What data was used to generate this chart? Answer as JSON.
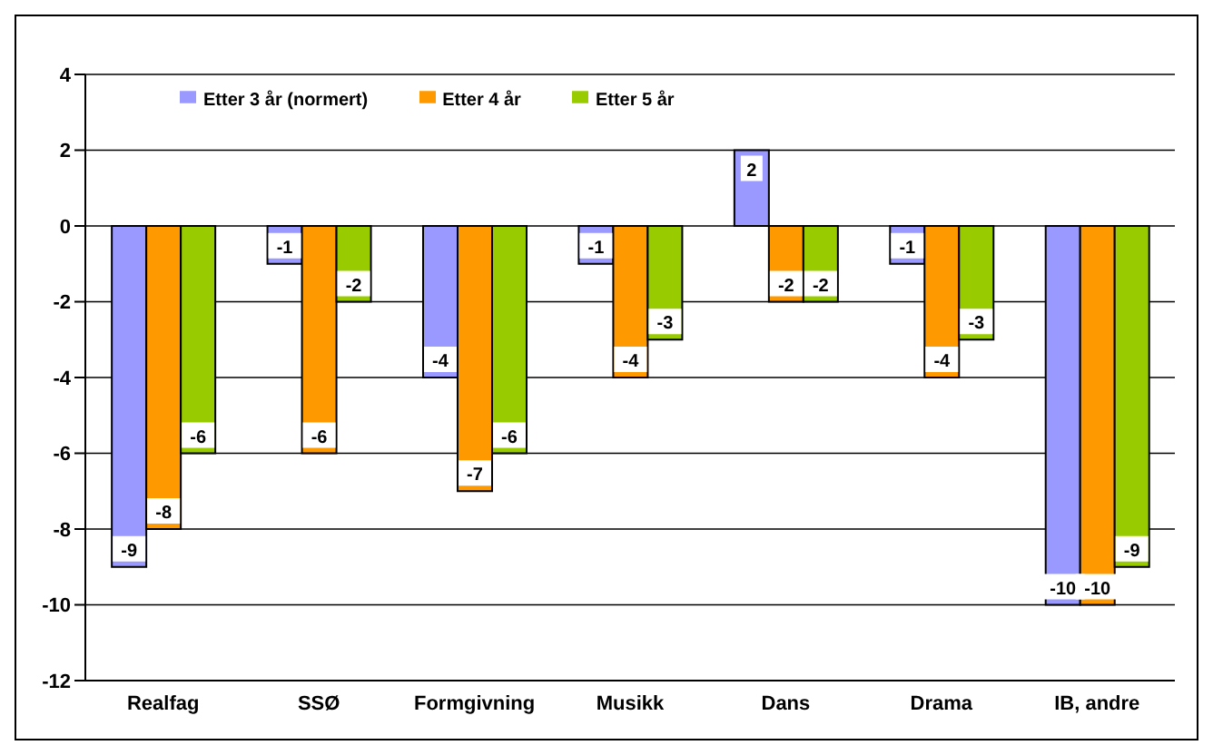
{
  "chart_data": {
    "type": "bar",
    "categories": [
      "Realfag",
      "SSØ",
      "Formgivning",
      "Musikk",
      "Dans",
      "Drama",
      "IB, andre"
    ],
    "series": [
      {
        "name": "Etter 3 år (normert)",
        "color": "#9999ff",
        "values": [
          -9,
          -1,
          -4,
          -1,
          2,
          -1,
          -10
        ]
      },
      {
        "name": "Etter 4 år",
        "color": "#ff9900",
        "values": [
          -8,
          -6,
          -7,
          -4,
          -2,
          -4,
          -10
        ]
      },
      {
        "name": "Etter 5 år",
        "color": "#99cc00",
        "values": [
          -6,
          -2,
          -6,
          -3,
          -2,
          -3,
          -9
        ]
      }
    ],
    "ylim": [
      -12,
      4
    ],
    "yticks": [
      -12,
      -10,
      -8,
      -6,
      -4,
      -2,
      0,
      2,
      4
    ],
    "grid": "y",
    "legend": "top",
    "data_labels": true
  }
}
